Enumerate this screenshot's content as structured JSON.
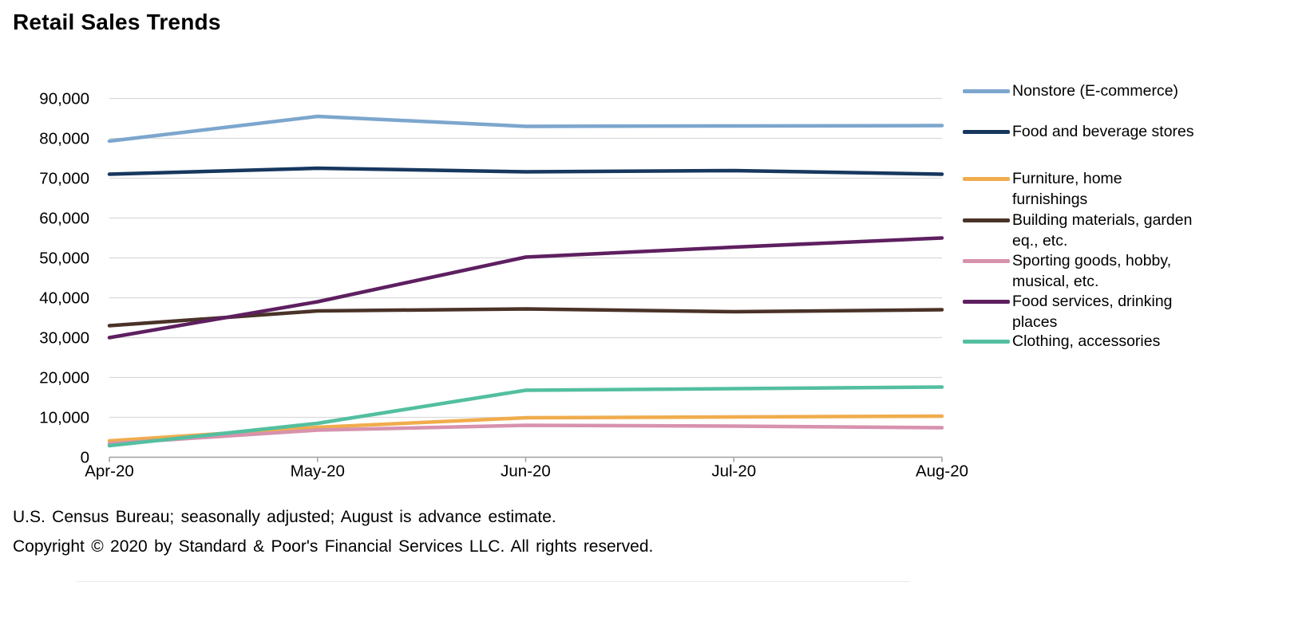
{
  "title": "Retail Sales Trends",
  "footer": {
    "source": "U.S. Census Bureau; seasonally adjusted; August is advance estimate.",
    "copyright": "Copyright © 2020 by Standard & Poor's Financial Services LLC. All rights reserved."
  },
  "colors": {
    "gridline": "#d9d9d9",
    "axis": "#a0a0a0",
    "text": "#000000"
  },
  "legend": {
    "items": [
      {
        "lines": [
          "Nonstore (E-commerce)"
        ],
        "color": "#7ca6cd"
      },
      {
        "lines": [
          "Food and beverage stores"
        ],
        "color": "#17375e"
      },
      {
        "lines": [
          "Furniture, home",
          "furnishings"
        ],
        "color": "#f0ac4d"
      },
      {
        "lines": [
          "Building materials, garden",
          "eq., etc."
        ],
        "color": "#4a3227"
      },
      {
        "lines": [
          "Sporting goods, hobby,",
          "musical, etc."
        ],
        "color": "#d792ae"
      },
      {
        "lines": [
          "Food services, drinking",
          "places"
        ],
        "color": "#5e1f60"
      },
      {
        "lines": [
          "Clothing, accessories"
        ],
        "color": "#53bfa0"
      }
    ]
  },
  "chart_data": {
    "type": "line",
    "title": "Retail Sales Trends",
    "xlabel": "",
    "ylabel": "",
    "categories": [
      "Apr-20",
      "May-20",
      "Jun-20",
      "Jul-20",
      "Aug-20"
    ],
    "series": [
      {
        "name": "Nonstore (E-commerce)",
        "color": "#7ca6cd",
        "values": [
          79300,
          85500,
          83000,
          83100,
          83200
        ]
      },
      {
        "name": "Food and beverage stores",
        "color": "#17375e",
        "values": [
          71000,
          72500,
          71600,
          71900,
          71000
        ]
      },
      {
        "name": "Furniture, home furnishings",
        "color": "#f0ac4d",
        "values": [
          4100,
          7500,
          9900,
          10100,
          10300
        ]
      },
      {
        "name": "Building materials, garden eq., etc.",
        "color": "#4a3227",
        "values": [
          33000,
          36700,
          37200,
          36500,
          37000
        ]
      },
      {
        "name": "Sporting goods, hobby, musical, etc.",
        "color": "#d792ae",
        "values": [
          3400,
          6800,
          8000,
          7800,
          7400
        ]
      },
      {
        "name": "Food services, drinking places",
        "color": "#5e1f60",
        "values": [
          30000,
          39000,
          50200,
          52700,
          55000
        ]
      },
      {
        "name": "Clothing, accessories",
        "color": "#53bfa0",
        "values": [
          2900,
          8500,
          16800,
          17200,
          17600
        ]
      }
    ],
    "ylim": [
      0,
      90000
    ],
    "ytick_interval": 10000,
    "y_tick_labels": [
      "0",
      "10,000",
      "20,000",
      "30,000",
      "40,000",
      "50,000",
      "60,000",
      "70,000",
      "80,000",
      "90,000"
    ],
    "grid": "horizontal",
    "legend_position": "right"
  }
}
